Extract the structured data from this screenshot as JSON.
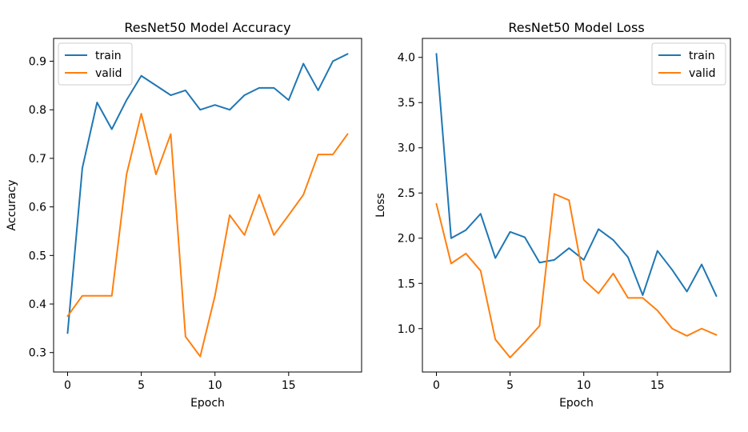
{
  "chart_data": [
    {
      "type": "line",
      "title": "ResNet50 Model Accuracy",
      "xlabel": "Epoch",
      "ylabel": "Accuracy",
      "xlim": [
        -0.95,
        19.95
      ],
      "ylim": [
        0.26,
        0.947
      ],
      "xticks": [
        0,
        5,
        10,
        15
      ],
      "yticks": [
        0.3,
        0.4,
        0.5,
        0.6,
        0.7,
        0.8,
        0.9
      ],
      "ytick_labels": [
        "0.3",
        "0.4",
        "0.5",
        "0.6",
        "0.7",
        "0.8",
        "0.9"
      ],
      "xtick_labels": [
        "0",
        "5",
        "10",
        "15"
      ],
      "legend_position": "top-left",
      "grid": false,
      "x": [
        0,
        1,
        2,
        3,
        4,
        5,
        6,
        7,
        8,
        9,
        10,
        11,
        12,
        13,
        14,
        15,
        16,
        17,
        18,
        19
      ],
      "series": [
        {
          "name": "train",
          "color": "#1f77b4",
          "values": [
            0.34,
            0.68,
            0.815,
            0.76,
            0.82,
            0.87,
            0.85,
            0.83,
            0.84,
            0.8,
            0.81,
            0.8,
            0.83,
            0.845,
            0.845,
            0.82,
            0.895,
            0.84,
            0.9,
            0.915
          ]
        },
        {
          "name": "valid",
          "color": "#ff7f0e",
          "values": [
            0.375,
            0.417,
            0.417,
            0.417,
            0.667,
            0.792,
            0.667,
            0.75,
            0.333,
            0.292,
            0.417,
            0.583,
            0.542,
            0.625,
            0.542,
            0.583,
            0.625,
            0.708,
            0.708,
            0.75
          ]
        }
      ]
    },
    {
      "type": "line",
      "title": "ResNet50 Model Loss",
      "xlabel": "Epoch",
      "ylabel": "Loss",
      "xlim": [
        -0.95,
        19.95
      ],
      "ylim": [
        0.52,
        4.21
      ],
      "xticks": [
        0,
        5,
        10,
        15
      ],
      "yticks": [
        1.0,
        1.5,
        2.0,
        2.5,
        3.0,
        3.5,
        4.0
      ],
      "ytick_labels": [
        "1.0",
        "1.5",
        "2.0",
        "2.5",
        "3.0",
        "3.5",
        "4.0"
      ],
      "xtick_labels": [
        "0",
        "5",
        "10",
        "15"
      ],
      "legend_position": "top-right",
      "grid": false,
      "x": [
        0,
        1,
        2,
        3,
        4,
        5,
        6,
        7,
        8,
        9,
        10,
        11,
        12,
        13,
        14,
        15,
        16,
        17,
        18,
        19
      ],
      "series": [
        {
          "name": "train",
          "color": "#1f77b4",
          "values": [
            4.04,
            2.0,
            2.09,
            2.27,
            1.78,
            2.07,
            2.01,
            1.73,
            1.76,
            1.89,
            1.76,
            2.1,
            1.98,
            1.79,
            1.37,
            1.86,
            1.65,
            1.41,
            1.71,
            1.36
          ]
        },
        {
          "name": "valid",
          "color": "#ff7f0e",
          "values": [
            2.38,
            1.72,
            1.83,
            1.64,
            0.88,
            0.68,
            0.85,
            1.03,
            2.49,
            2.42,
            1.54,
            1.39,
            1.61,
            1.34,
            1.34,
            1.2,
            1.0,
            0.92,
            1.0,
            0.93
          ]
        }
      ]
    }
  ]
}
